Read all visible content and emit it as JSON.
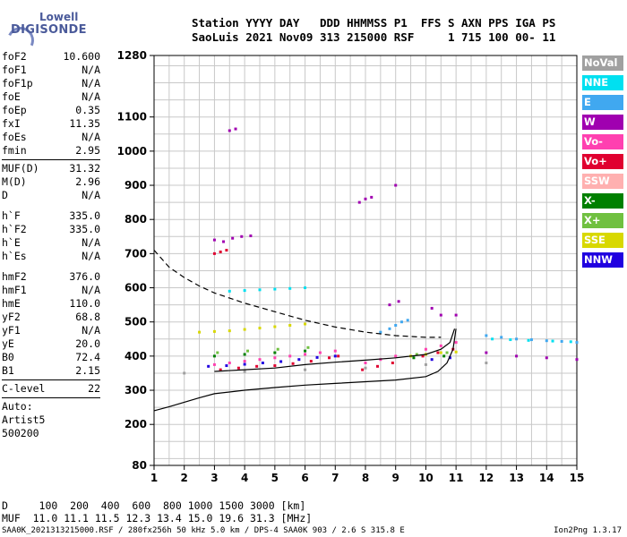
{
  "logo": {
    "line1": "Lowell",
    "line2": "DIGISONDE"
  },
  "header": {
    "line1": "Station YYYY DAY   DDD HHMMSS P1  FFS S AXN PPS IGA PS",
    "line2": "SaoLuis 2021 Nov09 313 215000 RSF     1 715 100 00- 11"
  },
  "params": {
    "group1": [
      {
        "k": "foF2",
        "v": "10.600"
      },
      {
        "k": "foF1",
        "v": "N/A"
      },
      {
        "k": "foF1p",
        "v": "N/A"
      },
      {
        "k": "foE",
        "v": "N/A"
      },
      {
        "k": "foEp",
        "v": "0.35"
      },
      {
        "k": "fxI",
        "v": "11.35"
      },
      {
        "k": "foEs",
        "v": "N/A"
      },
      {
        "k": "fmin",
        "v": "2.95"
      }
    ],
    "group2": [
      {
        "k": "MUF(D)",
        "v": "31.32"
      },
      {
        "k": "M(D)",
        "v": "2.96"
      },
      {
        "k": "D",
        "v": "N/A"
      }
    ],
    "group3": [
      {
        "k": "h`F",
        "v": "335.0"
      },
      {
        "k": "h`F2",
        "v": "335.0"
      },
      {
        "k": "h`E",
        "v": "N/A"
      },
      {
        "k": "h`Es",
        "v": "N/A"
      }
    ],
    "group4": [
      {
        "k": "hmF2",
        "v": "376.0"
      },
      {
        "k": "hmF1",
        "v": "N/A"
      },
      {
        "k": "hmE",
        "v": "110.0"
      },
      {
        "k": "yF2",
        "v": "68.8"
      },
      {
        "k": "yF1",
        "v": "N/A"
      },
      {
        "k": "yE",
        "v": "20.0"
      },
      {
        "k": "B0",
        "v": "72.4"
      },
      {
        "k": "B1",
        "v": "2.15"
      }
    ],
    "clevel": {
      "k": "C-level",
      "v": "22"
    },
    "notes": [
      "Auto:",
      "Artist5",
      "500200"
    ]
  },
  "legend": [
    {
      "label": "NoVal",
      "color": "#a0a0a0"
    },
    {
      "label": "NNE",
      "color": "#00e0f0"
    },
    {
      "label": "E",
      "color": "#40a8f0"
    },
    {
      "label": "W",
      "color": "#a000b0"
    },
    {
      "label": "Vo-",
      "color": "#ff40b0"
    },
    {
      "label": "Vo+",
      "color": "#e00030"
    },
    {
      "label": "SSW",
      "color": "#ffb0b0"
    },
    {
      "label": "X-",
      "color": "#008000"
    },
    {
      "label": "X+",
      "color": "#70c040"
    },
    {
      "label": "SSE",
      "color": "#d8d800"
    },
    {
      "label": "NNW",
      "color": "#2000e0"
    }
  ],
  "footer": {
    "line1": "D     100  200  400  600  800 1000 1500 3000 [km]",
    "line2": "MUF  11.0 11.1 11.5 12.3 13.4 15.0 19.6 31.3 [MHz]",
    "line3": "SAA0K_2021313215000.RSF / 280fx256h 50 kHz 5.0 km / DPS-4 SAA0K 903 / 2.6 S 315.8 E",
    "version": "Ion2Png 1.3.17"
  },
  "chart_data": {
    "type": "scatter",
    "title": "",
    "xlabel": "",
    "ylabel": "",
    "x_ticks": [
      1,
      2,
      3,
      4,
      5,
      6,
      7,
      8,
      9,
      10,
      11,
      12,
      13,
      14,
      15
    ],
    "y_ticks": [
      80,
      200,
      300,
      400,
      500,
      600,
      700,
      800,
      900,
      1000,
      1100,
      1280
    ],
    "xlim": [
      1,
      15
    ],
    "ylim": [
      80,
      1280
    ],
    "grid": true,
    "legend_position": "right",
    "series": [
      {
        "name": "W",
        "color": "#a000b0",
        "points": [
          [
            3.0,
            740
          ],
          [
            3.3,
            735
          ],
          [
            3.6,
            745
          ],
          [
            3.9,
            750
          ],
          [
            4.2,
            752
          ],
          [
            3.5,
            1060
          ],
          [
            3.7,
            1065
          ],
          [
            7.8,
            850
          ],
          [
            8.0,
            860
          ],
          [
            8.2,
            865
          ],
          [
            9.0,
            900
          ],
          [
            8.8,
            550
          ],
          [
            9.1,
            560
          ],
          [
            10.2,
            540
          ],
          [
            10.5,
            520
          ],
          [
            11.0,
            520
          ],
          [
            12.0,
            410
          ],
          [
            13.0,
            400
          ],
          [
            14.0,
            395
          ],
          [
            15.0,
            390
          ]
        ]
      },
      {
        "name": "Vo-",
        "color": "#ff40b0",
        "points": [
          [
            3.0,
            375
          ],
          [
            3.5,
            380
          ],
          [
            4.0,
            385
          ],
          [
            4.5,
            390
          ],
          [
            5.0,
            395
          ],
          [
            5.5,
            400
          ],
          [
            6.0,
            405
          ],
          [
            6.5,
            410
          ],
          [
            7.0,
            415
          ],
          [
            8.0,
            380
          ],
          [
            8.5,
            390
          ],
          [
            9.0,
            400
          ],
          [
            10.0,
            420
          ],
          [
            10.5,
            430
          ],
          [
            11.0,
            440
          ]
        ]
      },
      {
        "name": "Vo+",
        "color": "#e00030",
        "points": [
          [
            3.0,
            700
          ],
          [
            3.2,
            705
          ],
          [
            3.4,
            710
          ],
          [
            3.2,
            360
          ],
          [
            3.8,
            365
          ],
          [
            4.4,
            370
          ],
          [
            5.0,
            372
          ],
          [
            5.6,
            378
          ],
          [
            6.2,
            385
          ],
          [
            6.8,
            395
          ],
          [
            7.1,
            400
          ],
          [
            7.9,
            360
          ],
          [
            8.4,
            370
          ],
          [
            8.9,
            380
          ],
          [
            9.9,
            400
          ],
          [
            10.4,
            410
          ],
          [
            10.9,
            420
          ]
        ]
      },
      {
        "name": "E",
        "color": "#40a8f0",
        "points": [
          [
            8.5,
            470
          ],
          [
            8.8,
            480
          ],
          [
            9.0,
            490
          ],
          [
            9.2,
            500
          ],
          [
            9.4,
            505
          ],
          [
            12.0,
            460
          ],
          [
            12.5,
            455
          ],
          [
            13.0,
            450
          ],
          [
            13.5,
            448
          ],
          [
            14.0,
            445
          ],
          [
            14.5,
            443
          ],
          [
            15.0,
            440
          ]
        ]
      },
      {
        "name": "NNE",
        "color": "#00e0f0",
        "points": [
          [
            3.5,
            590
          ],
          [
            4.0,
            592
          ],
          [
            4.5,
            594
          ],
          [
            5.0,
            596
          ],
          [
            5.5,
            598
          ],
          [
            6.0,
            600
          ],
          [
            12.2,
            450
          ],
          [
            12.8,
            448
          ],
          [
            13.4,
            446
          ],
          [
            14.2,
            444
          ],
          [
            14.8,
            442
          ]
        ]
      },
      {
        "name": "SSE",
        "color": "#d8d800",
        "points": [
          [
            2.5,
            470
          ],
          [
            3.0,
            472
          ],
          [
            3.5,
            474
          ],
          [
            4.0,
            478
          ],
          [
            4.5,
            482
          ],
          [
            5.0,
            486
          ],
          [
            5.5,
            490
          ],
          [
            6.0,
            494
          ],
          [
            9.5,
            400
          ],
          [
            10.0,
            405
          ],
          [
            10.5,
            410
          ],
          [
            11.0,
            412
          ]
        ]
      },
      {
        "name": "NNW",
        "color": "#2000e0",
        "points": [
          [
            2.8,
            370
          ],
          [
            3.4,
            372
          ],
          [
            4.0,
            376
          ],
          [
            4.6,
            380
          ],
          [
            5.2,
            384
          ],
          [
            5.8,
            390
          ],
          [
            6.4,
            396
          ],
          [
            7.0,
            400
          ],
          [
            10.2,
            390
          ],
          [
            10.8,
            395
          ]
        ]
      },
      {
        "name": "X-",
        "color": "#008000",
        "points": [
          [
            3.0,
            400
          ],
          [
            4.0,
            405
          ],
          [
            5.0,
            410
          ],
          [
            6.0,
            415
          ],
          [
            9.6,
            395
          ],
          [
            10.6,
            400
          ]
        ]
      },
      {
        "name": "X+",
        "color": "#70c040",
        "points": [
          [
            3.1,
            410
          ],
          [
            4.1,
            415
          ],
          [
            5.1,
            420
          ],
          [
            6.1,
            425
          ],
          [
            9.7,
            405
          ],
          [
            10.7,
            410
          ]
        ]
      },
      {
        "name": "NoVal",
        "color": "#a0a0a0",
        "points": [
          [
            2.0,
            350
          ],
          [
            4.0,
            355
          ],
          [
            6.0,
            360
          ],
          [
            8.0,
            365
          ],
          [
            10.0,
            375
          ],
          [
            12.0,
            380
          ]
        ]
      }
    ],
    "curves": [
      {
        "style": "solid",
        "points": [
          [
            1.0,
            240
          ],
          [
            1.5,
            252
          ],
          [
            2.0,
            265
          ],
          [
            2.5,
            278
          ],
          [
            3.0,
            290
          ],
          [
            4.0,
            300
          ],
          [
            5.0,
            308
          ],
          [
            6.0,
            315
          ],
          [
            7.0,
            320
          ],
          [
            8.0,
            325
          ],
          [
            9.0,
            330
          ],
          [
            10.0,
            340
          ],
          [
            10.4,
            355
          ],
          [
            10.7,
            380
          ],
          [
            10.9,
            420
          ],
          [
            11.0,
            480
          ]
        ]
      },
      {
        "style": "dashed",
        "points": [
          [
            1.0,
            710
          ],
          [
            1.5,
            660
          ],
          [
            2.0,
            630
          ],
          [
            2.5,
            605
          ],
          [
            3.0,
            585
          ],
          [
            4.0,
            555
          ],
          [
            5.0,
            530
          ],
          [
            6.0,
            505
          ],
          [
            7.0,
            485
          ],
          [
            8.0,
            470
          ],
          [
            9.0,
            460
          ],
          [
            10.0,
            455
          ],
          [
            10.5,
            455
          ]
        ]
      },
      {
        "style": "solid",
        "points": [
          [
            3.0,
            355
          ],
          [
            4.0,
            360
          ],
          [
            5.0,
            365
          ],
          [
            6.0,
            375
          ],
          [
            7.0,
            382
          ],
          [
            8.0,
            388
          ],
          [
            9.0,
            395
          ],
          [
            10.0,
            405
          ],
          [
            10.5,
            420
          ],
          [
            10.8,
            440
          ],
          [
            10.95,
            480
          ]
        ]
      }
    ]
  }
}
